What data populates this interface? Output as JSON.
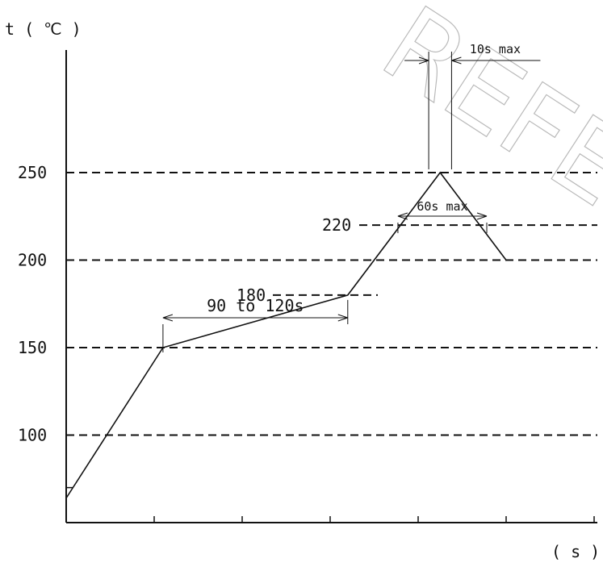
{
  "watermark": "REFER",
  "chart_data": {
    "type": "line",
    "title": "",
    "ylabel": "t ( ℃ )",
    "xlabel": "( s )",
    "y_ticks": [
      100,
      150,
      200,
      250
    ],
    "y_tick_labels": [
      "100",
      "150",
      "200",
      "250"
    ],
    "ylim": [
      50,
      250
    ],
    "x_tick_count": 6,
    "grid": "dashed horizontal reference lines at 100, 150, 200, 250",
    "series": [
      {
        "x": [
          0,
          1.1,
          3.2,
          4.25,
          5.0
        ],
        "values": [
          64,
          150,
          180,
          250,
          200
        ]
      }
    ],
    "reference_levels": [
      {
        "value": 180,
        "label": "180"
      },
      {
        "value": 220,
        "label": "220"
      }
    ],
    "annotations": [
      {
        "label": "90 to 120s",
        "from_x": 1.1,
        "to_x": 3.2
      },
      {
        "label": "60s max",
        "from_x": 3.77,
        "to_x": 4.78
      },
      {
        "label": "10s max",
        "from_x": 4.12,
        "to_x": 4.38
      }
    ]
  }
}
